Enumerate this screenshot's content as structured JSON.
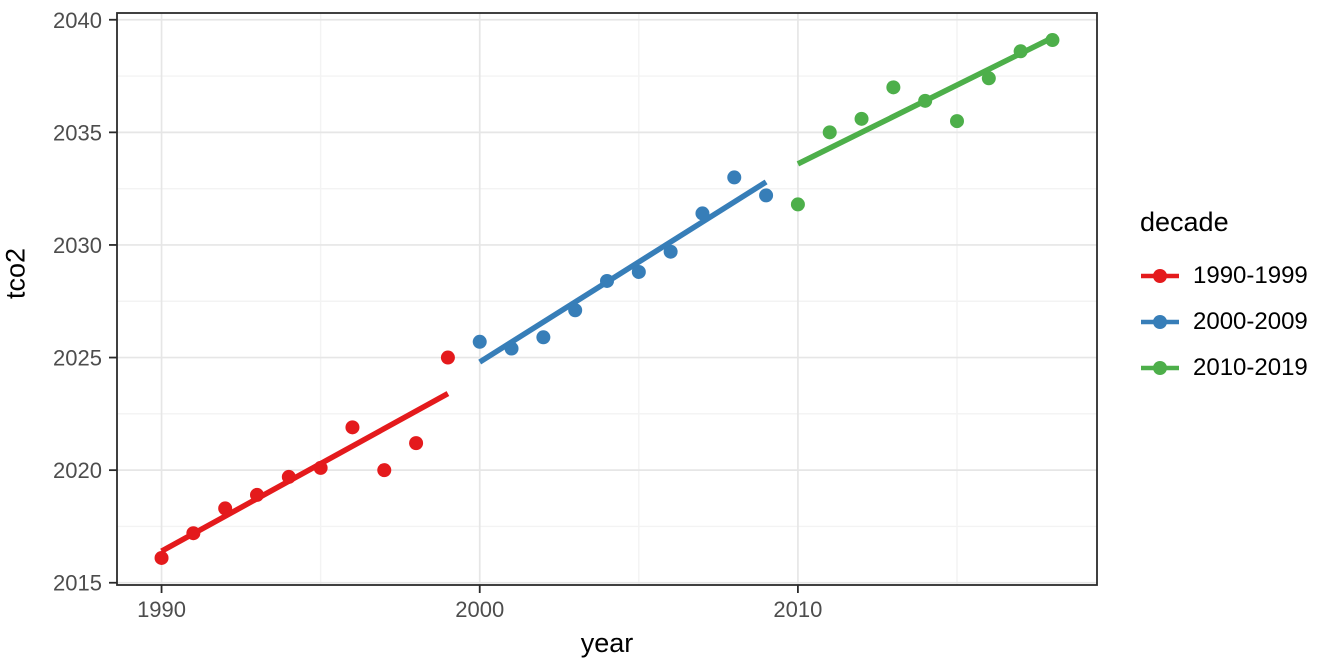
{
  "chart_data": {
    "type": "scatter",
    "title": "",
    "xlabel": "year",
    "ylabel": "tco2",
    "xlim": [
      1988.6,
      2019.4
    ],
    "ylim": [
      2014.9,
      2040.3
    ],
    "x_ticks": [
      1990,
      2000,
      2010
    ],
    "y_ticks": [
      2015,
      2020,
      2025,
      2030,
      2035,
      2040
    ],
    "x_minor_gridlines": [
      1995,
      2005,
      2015
    ],
    "y_minor_gridlines": [
      2017.5,
      2022.5,
      2027.5,
      2032.5,
      2037.5
    ],
    "grid": "on",
    "legend": {
      "title": "decade",
      "position": "right"
    },
    "series": [
      {
        "name": "1990-1999",
        "color": "#E41A1C",
        "x": [
          1990,
          1991,
          1992,
          1993,
          1994,
          1995,
          1996,
          1997,
          1998,
          1999
        ],
        "y": [
          2016.1,
          2017.2,
          2018.3,
          2018.9,
          2019.7,
          2020.1,
          2021.9,
          2020.0,
          2021.2,
          2025.0
        ],
        "trend": {
          "x": [
            1990,
            1999
          ],
          "y": [
            2016.4,
            2023.4
          ]
        }
      },
      {
        "name": "2000-2009",
        "color": "#377EB8",
        "x": [
          2000,
          2001,
          2002,
          2003,
          2004,
          2005,
          2006,
          2007,
          2008,
          2009
        ],
        "y": [
          2025.7,
          2025.4,
          2025.9,
          2027.1,
          2028.4,
          2028.8,
          2029.7,
          2031.4,
          2033.0,
          2032.2
        ],
        "trend": {
          "x": [
            2000,
            2009
          ],
          "y": [
            2024.8,
            2032.8
          ]
        }
      },
      {
        "name": "2010-2019",
        "color": "#4DAF4A",
        "x": [
          2010,
          2011,
          2012,
          2013,
          2014,
          2015,
          2016,
          2017,
          2018
        ],
        "y": [
          2031.8,
          2035.0,
          2035.6,
          2037.0,
          2036.4,
          2035.5,
          2037.4,
          2038.6,
          2039.1
        ],
        "trend": {
          "x": [
            2010,
            2018
          ],
          "y": [
            2033.6,
            2039.2
          ]
        }
      }
    ]
  }
}
